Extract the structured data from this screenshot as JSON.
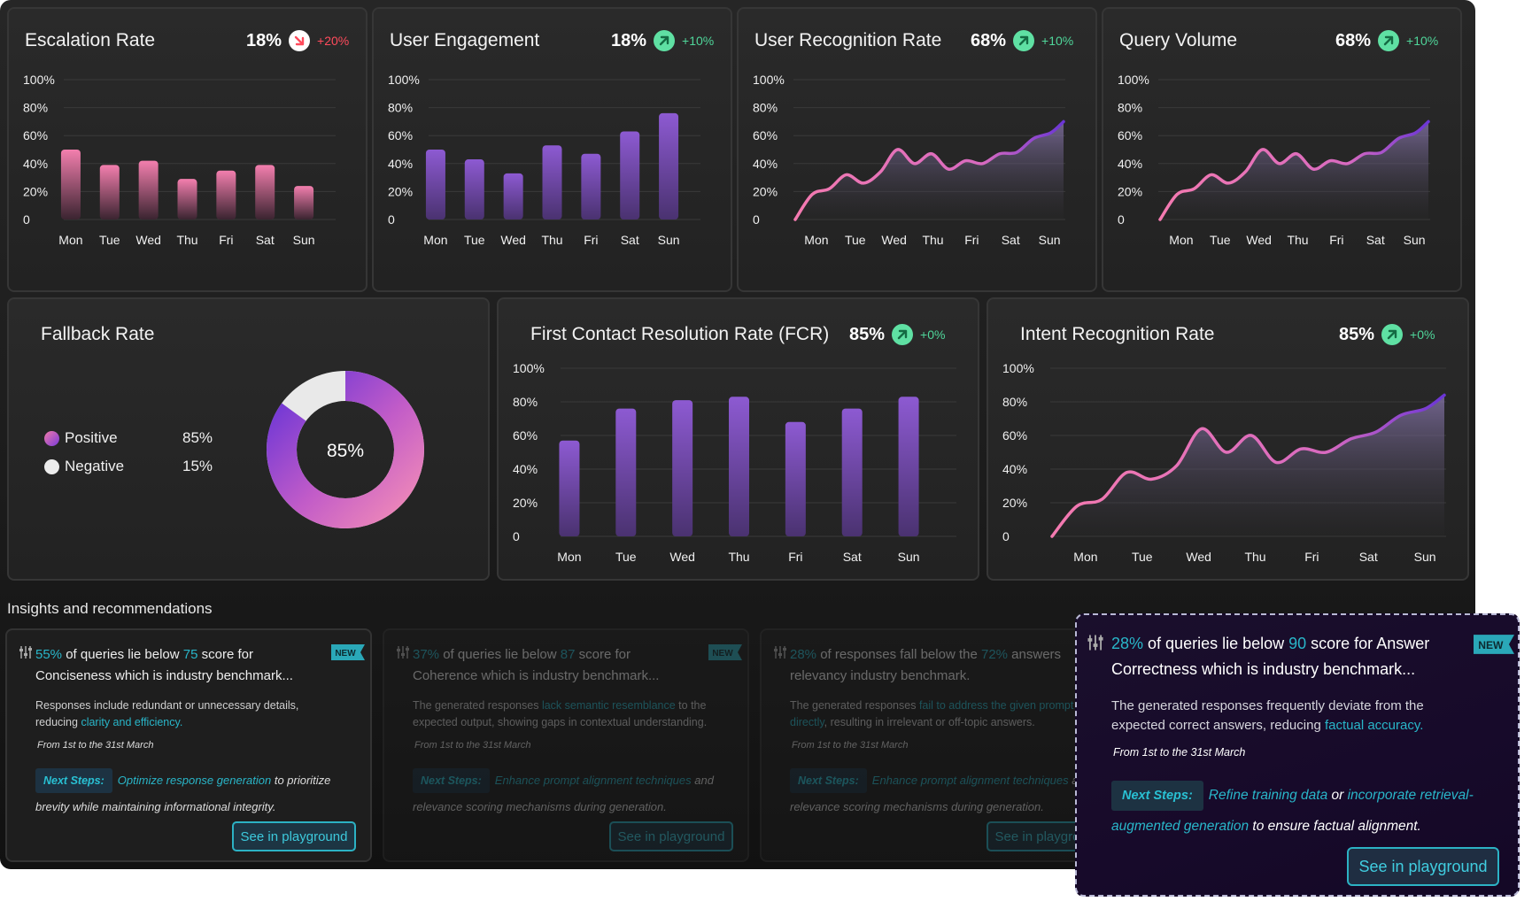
{
  "colors": {
    "accent_cyan": "#29b6c9",
    "purple": "#8a5ad0",
    "pink": "#f07aaa",
    "green": "#4fd69a",
    "red": "#ff4b5c"
  },
  "weekdays": [
    "Mon",
    "Tue",
    "Wed",
    "Thu",
    "Fri",
    "Sat",
    "Sun"
  ],
  "y_ticks": [
    "100%",
    "80%",
    "60%",
    "40%",
    "20%",
    "0"
  ],
  "cards": {
    "escalation": {
      "title": "Escalation Rate",
      "value": "18%",
      "delta": "+20%",
      "trend": "down"
    },
    "engagement": {
      "title": "User Engagement",
      "value": "18%",
      "delta": "+10%",
      "trend": "up"
    },
    "recognition": {
      "title": "User Recognition Rate",
      "value": "68%",
      "delta": "+10%",
      "trend": "up"
    },
    "query": {
      "title": "Query Volume",
      "value": "68%",
      "delta": "+10%",
      "trend": "up"
    },
    "fallback": {
      "title": "Fallback Rate",
      "center": "85%",
      "legend": [
        {
          "label": "Positive",
          "pct": "85%"
        },
        {
          "label": "Negative",
          "pct": "15%"
        }
      ]
    },
    "fcr": {
      "title": "First Contact Resolution Rate (FCR)",
      "value": "85%",
      "delta": "+0%",
      "trend": "up"
    },
    "intent": {
      "title": "Intent Recognition Rate",
      "value": "85%",
      "delta": "+0%",
      "trend": "up"
    }
  },
  "chart_data": [
    {
      "type": "bar",
      "title": "Escalation Rate",
      "categories": [
        "Mon",
        "Tue",
        "Wed",
        "Thu",
        "Fri",
        "Sat",
        "Sun"
      ],
      "values": [
        50,
        39,
        42,
        29,
        35,
        39,
        24
      ],
      "ylim": [
        0,
        100
      ]
    },
    {
      "type": "bar",
      "title": "User Engagement",
      "categories": [
        "Mon",
        "Tue",
        "Wed",
        "Thu",
        "Fri",
        "Sat",
        "Sun"
      ],
      "values": [
        50,
        43,
        33,
        53,
        47,
        63,
        76
      ],
      "ylim": [
        0,
        100
      ]
    },
    {
      "type": "area",
      "title": "User Recognition Rate",
      "categories": [
        "Mon",
        "Tue",
        "Wed",
        "Thu",
        "Fri",
        "Sat",
        "Sun"
      ],
      "x": [
        0,
        0.4,
        0.8,
        1.2,
        1.6,
        2.0,
        2.4,
        2.8,
        3.2,
        3.6,
        4.0,
        4.4,
        4.8,
        5.2,
        5.6,
        6.0,
        6.3
      ],
      "values": [
        0,
        18,
        22,
        32,
        26,
        34,
        50,
        40,
        47,
        36,
        42,
        40,
        47,
        48,
        58,
        62,
        70
      ],
      "ylim": [
        0,
        100
      ]
    },
    {
      "type": "area",
      "title": "Query Volume",
      "categories": [
        "Mon",
        "Tue",
        "Wed",
        "Thu",
        "Fri",
        "Sat",
        "Sun"
      ],
      "x": [
        0,
        0.4,
        0.8,
        1.2,
        1.6,
        2.0,
        2.4,
        2.8,
        3.2,
        3.6,
        4.0,
        4.4,
        4.8,
        5.2,
        5.6,
        6.0,
        6.3
      ],
      "values": [
        0,
        18,
        22,
        32,
        26,
        34,
        50,
        40,
        47,
        36,
        42,
        40,
        47,
        48,
        58,
        62,
        70
      ],
      "ylim": [
        0,
        100
      ]
    },
    {
      "type": "pie",
      "title": "Fallback Rate",
      "labels": [
        "Positive",
        "Negative"
      ],
      "values": [
        85,
        15
      ]
    },
    {
      "type": "bar",
      "title": "First Contact Resolution Rate (FCR)",
      "categories": [
        "Mon",
        "Tue",
        "Wed",
        "Thu",
        "Fri",
        "Sat",
        "Sun"
      ],
      "values": [
        57,
        76,
        81,
        83,
        68,
        76,
        83
      ],
      "ylim": [
        0,
        100
      ]
    },
    {
      "type": "area",
      "title": "Intent Recognition Rate",
      "categories": [
        "Mon",
        "Tue",
        "Wed",
        "Thu",
        "Fri",
        "Sat",
        "Sun"
      ],
      "x": [
        0,
        0.4,
        0.8,
        1.2,
        1.6,
        2.0,
        2.4,
        2.8,
        3.2,
        3.6,
        4.0,
        4.4,
        4.8,
        5.2,
        5.6,
        6.0,
        6.3
      ],
      "values": [
        0,
        18,
        22,
        38,
        34,
        42,
        64,
        50,
        60,
        44,
        52,
        50,
        58,
        62,
        72,
        76,
        84
      ],
      "ylim": [
        0,
        100
      ]
    }
  ],
  "insights": {
    "title": "Insights and recommendations",
    "new_label": "NEW",
    "button_label": "See in playground",
    "next_label": "Next Steps:",
    "period": "From 1st to the 31st March",
    "items": [
      {
        "pct": "55%",
        "head_a": " of queries lie below ",
        "score": "75",
        "head_b": " score for Conciseness which is industry benchmark...",
        "body_a": "Responses include redundant or unnecessary details, reducing ",
        "body_hl": "clarity and efficiency.",
        "body_b": "",
        "next_hl1": "Optimize response generation",
        "next_mid": " to prioritize brevity while maintaining informational integrity.",
        "next_hl2": "",
        "next_end": ""
      },
      {
        "pct": "37%",
        "head_a": " of queries lie below ",
        "score": "87",
        "head_b": " score for Coherence which is industry benchmark...",
        "body_a": "The generated responses ",
        "body_hl": "lack semantic resemblance",
        "body_b": " to the expected output, showing gaps in contextual understanding.",
        "next_hl1": "Enhance prompt alignment techniques",
        "next_mid": " and relevance scoring mechanisms during generation.",
        "next_hl2": "",
        "next_end": ""
      },
      {
        "pct": "28%",
        "head_a": " of responses fall below the ",
        "score": "72%",
        "head_b": " answers relevancy industry benchmark.",
        "body_a": "The generated responses ",
        "body_hl": "fail to address the given prompt directly",
        "body_b": ", resulting in irrelevant or off-topic answers.",
        "next_hl1": "Enhance prompt alignment techniques",
        "next_mid": " and relevance scoring mechanisms during generation.",
        "next_hl2": "",
        "next_end": ""
      },
      {
        "pct": "28%",
        "head_a": " of queries lie below ",
        "score": "90",
        "head_b": " score for Answer Correctness which is industry benchmark...",
        "body_a": "The generated responses frequently deviate from the expected correct answers, reducing ",
        "body_hl": "factual accuracy.",
        "body_b": "",
        "next_hl1": "Refine training data",
        "next_mid": " or ",
        "next_hl2": "incorporate retrieval-augmented generation",
        "next_end": " to ensure factual alignment."
      }
    ]
  }
}
